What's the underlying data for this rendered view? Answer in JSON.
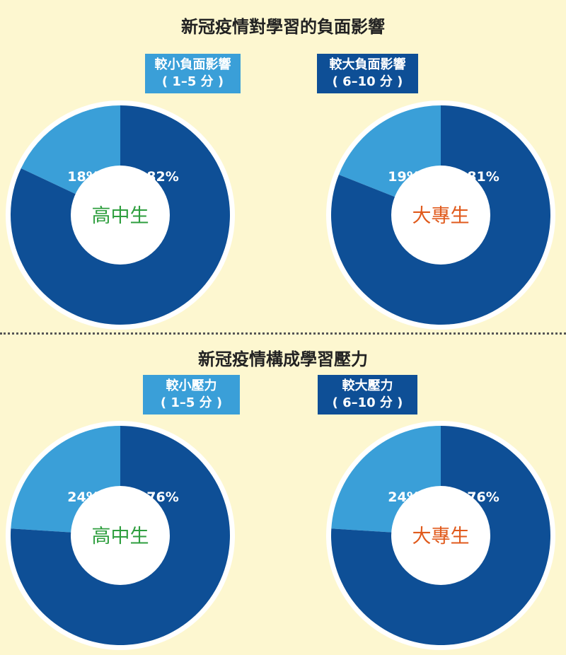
{
  "sections": [
    {
      "title": "新冠疫情對學習的負面影響",
      "legend_small": {
        "line1": "較小負面影響",
        "line2": "( 1–5 分 )"
      },
      "legend_large": {
        "line1": "較大負面影響",
        "line2": "( 6–10 分 )"
      }
    },
    {
      "title": "新冠疫情構成學習壓力",
      "legend_small": {
        "line1": "較小壓力",
        "line2": "( 1–5 分 )"
      },
      "legend_large": {
        "line1": "較大壓力",
        "line2": "( 6–10 分 )"
      }
    }
  ],
  "colors": {
    "small": "#3a9fd8",
    "large": "#0e4f96",
    "high_school": "#2e9e3e",
    "tertiary": "#e05a1c"
  },
  "chart_data": [
    {
      "type": "pie",
      "center_label": "高中生",
      "center_color": "high_school",
      "slices": [
        {
          "label": "18%",
          "value": 18,
          "color": "small"
        },
        {
          "label": "82%",
          "value": 82,
          "color": "large"
        }
      ]
    },
    {
      "type": "pie",
      "center_label": "大專生",
      "center_color": "tertiary",
      "slices": [
        {
          "label": "19%",
          "value": 19,
          "color": "small"
        },
        {
          "label": "81%",
          "value": 81,
          "color": "large"
        }
      ]
    },
    {
      "type": "pie",
      "center_label": "高中生",
      "center_color": "high_school",
      "slices": [
        {
          "label": "24%",
          "value": 24,
          "color": "small"
        },
        {
          "label": "76%",
          "value": 76,
          "color": "large"
        }
      ]
    },
    {
      "type": "pie",
      "center_label": "大專生",
      "center_color": "tertiary",
      "slices": [
        {
          "label": "24%",
          "value": 24,
          "color": "small"
        },
        {
          "label": "76%",
          "value": 76,
          "color": "large"
        }
      ]
    }
  ]
}
